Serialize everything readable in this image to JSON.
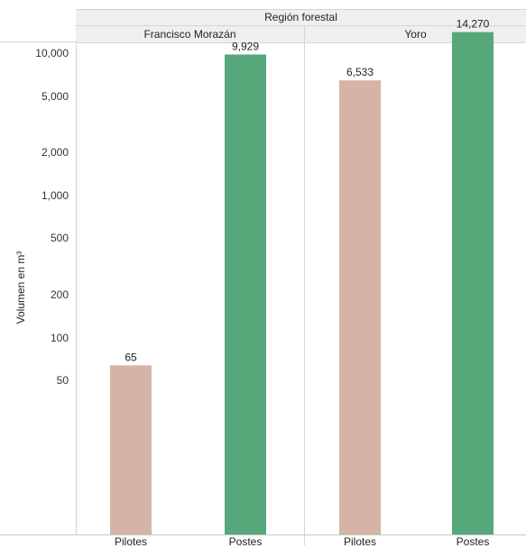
{
  "chart_data": {
    "type": "bar",
    "title": "",
    "header": "Región forestal",
    "ylabel": "Volumen en m³",
    "y_scale": "log",
    "yticks": [
      50,
      100,
      200,
      500,
      1000,
      2000,
      5000,
      10000
    ],
    "ytick_labels": [
      "50",
      "100",
      "200",
      "500",
      "1,000",
      "2,000",
      "5,000",
      "10,000"
    ],
    "panels": [
      {
        "name": "Francisco Morazán",
        "categories": [
          "Pilotes",
          "Postes"
        ],
        "values": [
          65,
          9929
        ],
        "labels": [
          "65",
          "9,929"
        ]
      },
      {
        "name": "Yoro",
        "categories": [
          "Pilotes",
          "Postes"
        ],
        "values": [
          6533,
          14270
        ],
        "labels": [
          "6,533",
          "14,270"
        ]
      }
    ],
    "colors": {
      "Pilotes": "#d5b3a5",
      "Postes": "#56a87b"
    },
    "grid": false
  }
}
